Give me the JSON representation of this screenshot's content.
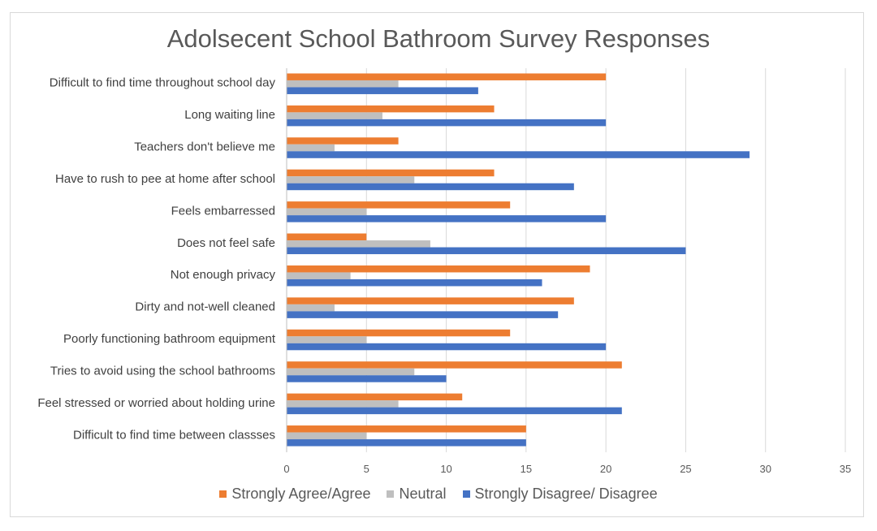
{
  "chart_data": {
    "type": "bar",
    "orientation": "horizontal",
    "title": "Adolsecent School Bathroom Survey Responses",
    "xlabel": "",
    "ylabel": "",
    "xlim": [
      0,
      35
    ],
    "xticks": [
      0,
      5,
      10,
      15,
      20,
      25,
      30,
      35
    ],
    "grid": true,
    "legend_position": "bottom",
    "categories": [
      "Difficult to find time throughout school day",
      "Long waiting line",
      "Teachers don't believe me",
      "Have to rush to pee at home after school",
      "Feels embarressed",
      "Does not feel safe",
      "Not enough privacy",
      "Dirty and not-well cleaned",
      "Poorly functioning bathroom equipment",
      "Tries to avoid using the school bathrooms",
      "Feel stressed or worried about holding urine",
      "Difficult to find time between classses"
    ],
    "series": [
      {
        "name": "Strongly Agree/Agree",
        "color": "#ed7d31",
        "values": [
          20,
          13,
          7,
          13,
          14,
          5,
          19,
          18,
          14,
          21,
          11,
          15
        ]
      },
      {
        "name": "Neutral",
        "color": "#bfbfbf",
        "values": [
          7,
          6,
          3,
          8,
          5,
          9,
          4,
          3,
          5,
          8,
          7,
          5
        ]
      },
      {
        "name": "Strongly Disagree/ Disagree",
        "color": "#4472c4",
        "values": [
          12,
          20,
          29,
          18,
          20,
          25,
          16,
          17,
          20,
          10,
          21,
          15
        ]
      }
    ]
  }
}
